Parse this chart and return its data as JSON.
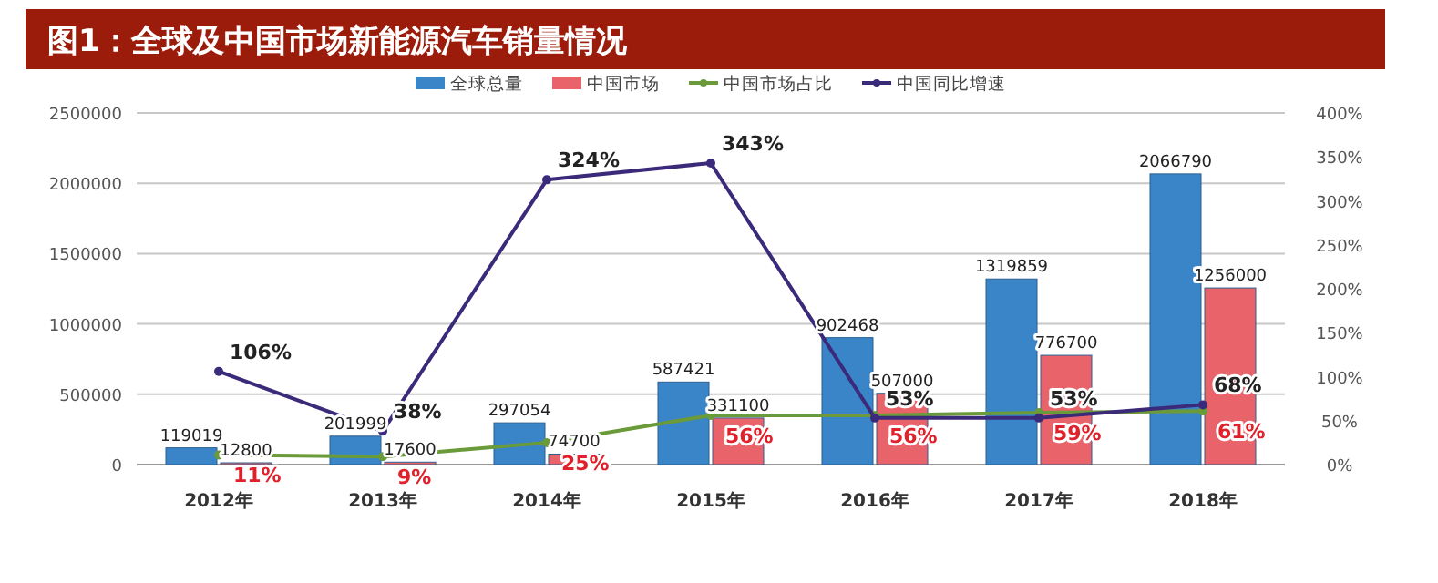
{
  "chart_data": {
    "type": "bar",
    "title": "图1：全球及中国市场新能源汽车销量情况",
    "categories": [
      "2012年",
      "2013年",
      "2014年",
      "2015年",
      "2016年",
      "2017年",
      "2018年"
    ],
    "series": [
      {
        "name": "全球总量",
        "color": "#3a85c8",
        "values": [
          119019,
          201999,
          297054,
          587421,
          902468,
          1319859,
          2066790
        ]
      },
      {
        "name": "中国市场",
        "color": "#e8646a",
        "values": [
          12800,
          17600,
          74700,
          331100,
          507000,
          776700,
          1256000
        ]
      },
      {
        "name": "中国市场占比",
        "type": "line",
        "axis": "y2",
        "color": "#6a9a3a",
        "values": [
          11,
          9,
          25,
          56,
          56,
          59,
          61
        ],
        "value_labels": [
          "11%",
          "9%",
          "25%",
          "56%",
          "56%",
          "59%",
          "61%"
        ]
      },
      {
        "name": "中国同比增速",
        "type": "line",
        "axis": "y2",
        "color": "#3b2a7a",
        "values": [
          106,
          38,
          324,
          343,
          53,
          53,
          68
        ],
        "value_labels": [
          "106%",
          "38%",
          "324%",
          "343%",
          "53%",
          "53%",
          "68%"
        ]
      }
    ],
    "ylim": [
      0,
      2500000
    ],
    "yticks": [
      0,
      500000,
      1000000,
      1500000,
      2000000,
      2500000
    ],
    "y2lim": [
      0,
      400
    ],
    "y2ticks": [
      {
        "value": 0,
        "label": "0%"
      },
      {
        "value": 50,
        "label": "50%"
      },
      {
        "value": 100,
        "label": "100%"
      },
      {
        "value": 150,
        "label": "150%"
      },
      {
        "value": 200,
        "label": "200%"
      },
      {
        "value": 250,
        "label": "250%"
      },
      {
        "value": 300,
        "label": "300%"
      },
      {
        "value": 350,
        "label": "350%"
      },
      {
        "value": 400,
        "label": "400%"
      }
    ],
    "data_labels": true,
    "grid": "y",
    "legend": "top",
    "marker": "circle"
  }
}
